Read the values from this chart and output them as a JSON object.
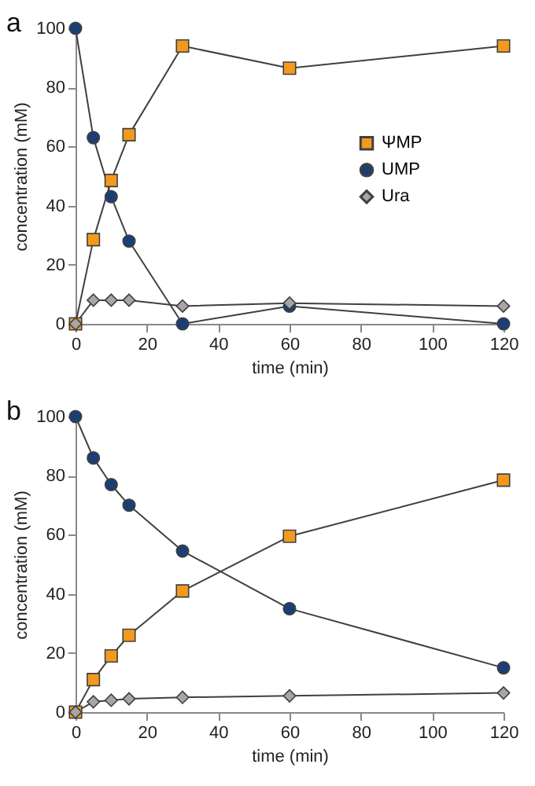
{
  "chart_data": [
    {
      "type": "line",
      "title": "a",
      "xlabel": "time (min)",
      "ylabel": "concentration (mM)",
      "x": [
        0,
        5,
        10,
        15,
        30,
        60,
        120
      ],
      "xlim": [
        0,
        120
      ],
      "xticks": [
        0,
        20,
        40,
        60,
        80,
        100,
        120
      ],
      "ylim": [
        0,
        100
      ],
      "yticks": [
        0,
        20,
        40,
        60,
        80,
        100
      ],
      "legend": "right",
      "grid": false,
      "series": [
        {
          "name": "ΨMP",
          "color": "#f39a1e",
          "marker": "square",
          "values": [
            0,
            28.5,
            48.5,
            64,
            94,
            86.5,
            94
          ]
        },
        {
          "name": "UMP",
          "color": "#1b3f73",
          "marker": "circle",
          "values": [
            100,
            63,
            43,
            28,
            0,
            6,
            0
          ]
        },
        {
          "name": "Ura",
          "color": "#a6a6a6",
          "marker": "diamond",
          "values": [
            0,
            8,
            8,
            8,
            6,
            7,
            6
          ]
        }
      ]
    },
    {
      "type": "line",
      "title": "b",
      "xlabel": "time (min)",
      "ylabel": "concentration (mM)",
      "x": [
        0,
        5,
        10,
        15,
        30,
        60,
        120
      ],
      "xlim": [
        0,
        120
      ],
      "xticks": [
        0,
        20,
        40,
        60,
        80,
        100,
        120
      ],
      "ylim": [
        0,
        100
      ],
      "yticks": [
        0,
        20,
        40,
        60,
        80,
        100
      ],
      "legend": "right",
      "grid": false,
      "series": [
        {
          "name": "ΨMP",
          "color": "#f39a1e",
          "marker": "square",
          "values": [
            0,
            11,
            19,
            26,
            41,
            59.5,
            78.5
          ]
        },
        {
          "name": "UMP",
          "color": "#1b3f73",
          "marker": "circle",
          "values": [
            100,
            86,
            77,
            70,
            54.5,
            35,
            15
          ]
        },
        {
          "name": "Ura",
          "color": "#a6a6a6",
          "marker": "diamond",
          "values": [
            0,
            3.5,
            4,
            4.5,
            5,
            5.5,
            6.5
          ]
        }
      ]
    }
  ]
}
